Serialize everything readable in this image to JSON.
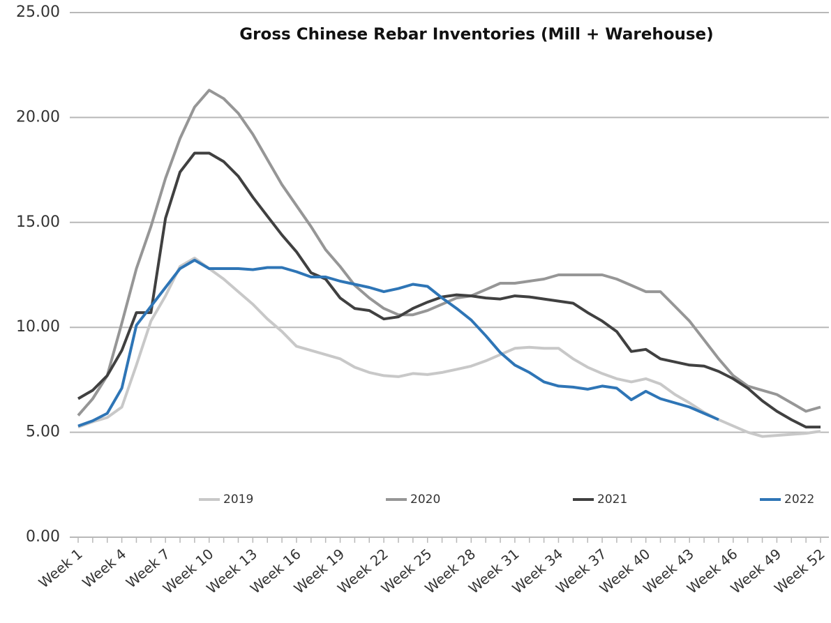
{
  "chart_data": {
    "type": "line",
    "title": "Gross Chinese Rebar Inventories (Mill + Warehouse)",
    "categories": [
      "Week 1",
      null,
      null,
      "Week 4",
      null,
      null,
      "Week 7",
      null,
      null,
      "Week 10",
      null,
      null,
      "Week 13",
      null,
      null,
      "Week 16",
      null,
      null,
      "Week 19",
      null,
      null,
      "Week 22",
      null,
      null,
      "Week 25",
      null,
      null,
      "Week 28",
      null,
      null,
      "Week 31",
      null,
      null,
      "Week 34",
      null,
      null,
      "Week 37",
      null,
      null,
      "Week 40",
      null,
      null,
      "Week 43",
      null,
      null,
      "Week 46",
      null,
      null,
      "Week 49",
      null,
      null,
      "Week 52"
    ],
    "series": [
      {
        "name": "2019",
        "color": "#c8c8c8",
        "values": [
          5.25,
          5.5,
          5.7,
          6.2,
          8.2,
          10.3,
          11.5,
          12.9,
          13.3,
          12.8,
          12.3,
          11.7,
          11.1,
          10.4,
          9.8,
          9.1,
          8.9,
          8.7,
          8.5,
          8.1,
          7.85,
          7.7,
          7.65,
          7.8,
          7.75,
          7.85,
          8.0,
          8.15,
          8.4,
          8.7,
          9.0,
          9.05,
          9.0,
          9.0,
          8.5,
          8.1,
          7.8,
          7.55,
          7.4,
          7.55,
          7.3,
          6.8,
          6.4,
          5.95,
          5.6,
          5.3,
          5.0,
          4.8,
          4.85,
          4.9,
          4.95,
          5.05
        ]
      },
      {
        "name": "2020",
        "color": "#969696",
        "values": [
          5.8,
          6.6,
          7.7,
          10.2,
          12.8,
          14.8,
          17.1,
          19.0,
          20.5,
          21.3,
          20.9,
          20.2,
          19.2,
          18.0,
          16.8,
          15.8,
          14.8,
          13.7,
          12.9,
          12.0,
          11.4,
          10.9,
          10.6,
          10.6,
          10.8,
          11.1,
          11.4,
          11.5,
          11.8,
          12.1,
          12.1,
          12.2,
          12.3,
          12.5,
          12.5,
          12.5,
          12.5,
          12.3,
          12.0,
          11.7,
          11.7,
          11.0,
          10.3,
          9.4,
          8.5,
          7.7,
          7.2,
          7.0,
          6.8,
          6.4,
          6.0,
          6.2
        ]
      },
      {
        "name": "2021",
        "color": "#404040",
        "values": [
          6.6,
          7.0,
          7.7,
          8.9,
          10.7,
          10.7,
          15.2,
          17.4,
          18.3,
          18.3,
          17.9,
          17.2,
          16.2,
          15.3,
          14.4,
          13.6,
          12.6,
          12.3,
          11.4,
          10.9,
          10.8,
          10.4,
          10.5,
          10.9,
          11.2,
          11.45,
          11.55,
          11.5,
          11.4,
          11.35,
          11.5,
          11.45,
          11.35,
          11.25,
          11.15,
          10.7,
          10.3,
          9.8,
          8.85,
          8.95,
          8.5,
          8.35,
          8.2,
          8.15,
          7.9,
          7.55,
          7.1,
          6.5,
          6.0,
          5.6,
          5.25,
          5.25
        ]
      },
      {
        "name": "2022",
        "color": "#2e75b6",
        "values": [
          5.3,
          5.55,
          5.9,
          7.1,
          10.1,
          11.0,
          11.9,
          12.8,
          13.2,
          12.8,
          12.8,
          12.8,
          12.75,
          12.85,
          12.85,
          12.65,
          12.4,
          12.4,
          12.2,
          12.05,
          11.9,
          11.7,
          11.85,
          12.05,
          11.95,
          11.4,
          10.9,
          10.35,
          9.6,
          8.8,
          8.2,
          7.85,
          7.4,
          7.2,
          7.15,
          7.05,
          7.2,
          7.1,
          6.55,
          6.95,
          6.6,
          6.4,
          6.2,
          5.9,
          5.6,
          null,
          null,
          null,
          null,
          null,
          null,
          null
        ]
      }
    ],
    "ylim": [
      0,
      25
    ],
    "yticks": [
      {
        "value": 0,
        "label": "0.00"
      },
      {
        "value": 5,
        "label": "5.00"
      },
      {
        "value": 10,
        "label": "10.00"
      },
      {
        "value": 15,
        "label": "15.00"
      },
      {
        "value": 20,
        "label": "20.00"
      },
      {
        "value": 25,
        "label": "25.00"
      }
    ],
    "grid": true,
    "legend": "bottom"
  }
}
